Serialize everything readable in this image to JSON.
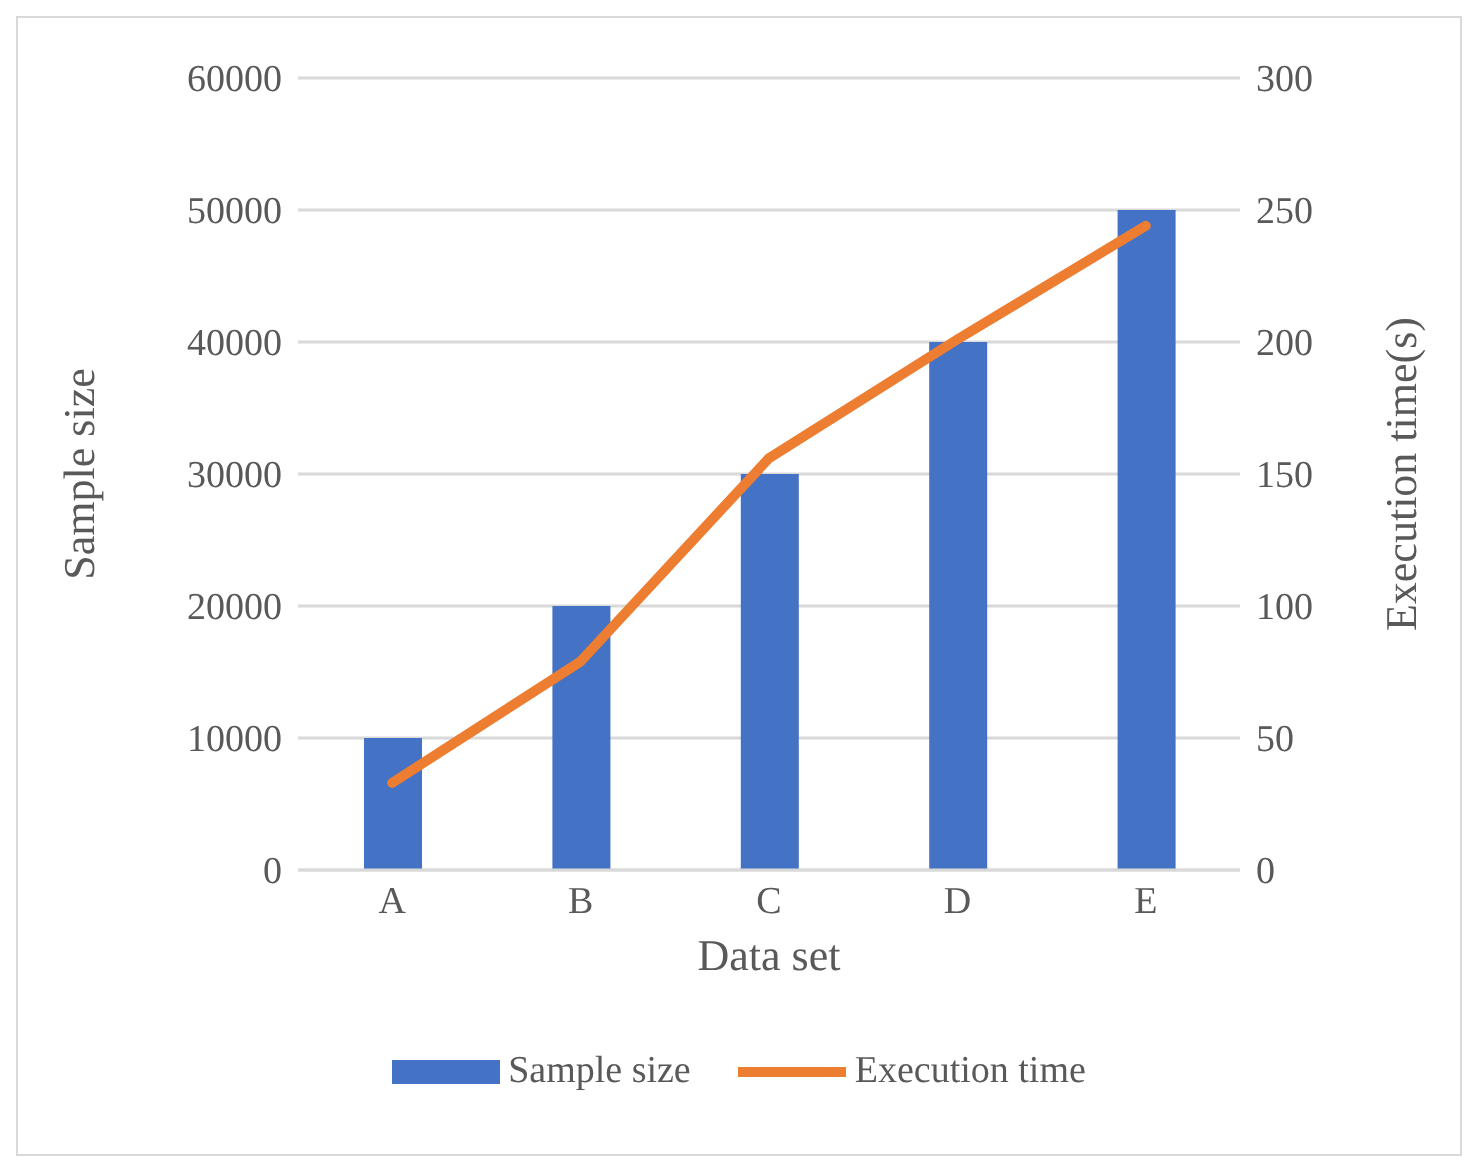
{
  "chart_data": {
    "type": "bar",
    "categories": [
      "A",
      "B",
      "C",
      "D",
      "E"
    ],
    "series": [
      {
        "name": "Sample size",
        "color": "#4472c4",
        "values": [
          10000,
          20000,
          30000,
          40000,
          50000
        ]
      },
      {
        "name": "Execution time",
        "type": "line",
        "axis": "y2",
        "color": "#ed7d31",
        "values": [
          33,
          79,
          156,
          201,
          244
        ]
      }
    ],
    "xlabel": "Data set",
    "ylabel": "Sample size",
    "y2label": "Execution time(s)",
    "ylim": [
      0,
      60000
    ],
    "yticks": [
      0,
      10000,
      20000,
      30000,
      40000,
      50000,
      60000
    ],
    "y2lim": [
      0,
      300
    ],
    "y2ticks": [
      0,
      50,
      100,
      150,
      200,
      250,
      300
    ],
    "grid": "y",
    "legend": "bottom",
    "marker": "none",
    "line_style": "solid"
  }
}
